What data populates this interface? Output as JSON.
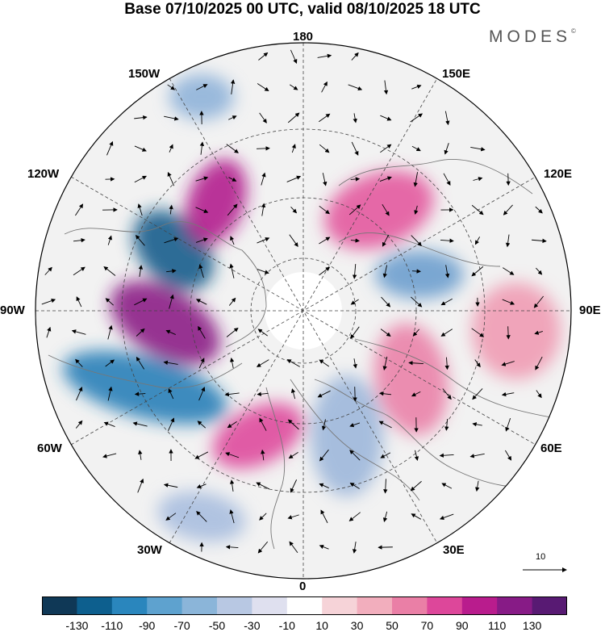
{
  "header": {
    "title": "Base 07/10/2025 00 UTC, valid 08/10/2025 18 UTC",
    "brand": "MODES",
    "brand_mark": "©"
  },
  "map": {
    "projection": "north-polar-stereographic",
    "longitude_labels": {
      "lon_180": "180",
      "lon_150e": "150E",
      "lon_120e": "120E",
      "lon_90e": "90E",
      "lon_60e": "60E",
      "lon_30e": "30E",
      "lon_0": "0",
      "lon_30w": "30W",
      "lon_60w": "60W",
      "lon_90w": "90W",
      "lon_120w": "120W",
      "lon_150w": "150W"
    },
    "vector_reference": {
      "label": "10"
    }
  },
  "colorbar": {
    "colors": [
      "#0f3856",
      "#0d5f8e",
      "#2a86bd",
      "#5ea2cf",
      "#8bb5d9",
      "#b8c8e3",
      "#dfe0ef",
      "#ffffff",
      "#f6d3d8",
      "#f2aebd",
      "#ea7fa6",
      "#dd479a",
      "#b91c8d",
      "#871b86",
      "#581a73"
    ],
    "ticks": [
      "-130",
      "-110",
      "-90",
      "-70",
      "-50",
      "-30",
      "-10",
      "10",
      "30",
      "50",
      "70",
      "90",
      "110",
      "130"
    ]
  },
  "anomaly_centers": [
    {
      "name": "blob-neg-n-america-west",
      "color": "#1b5d8c"
    },
    {
      "name": "blob-pos-canada",
      "color": "#8c1f86"
    },
    {
      "name": "blob-pos-alaska",
      "color": "#b31d8e"
    },
    {
      "name": "blob-neg-n-america-south",
      "color": "#2a7fb8"
    },
    {
      "name": "blob-neg-bering",
      "color": "#8fb3d9"
    },
    {
      "name": "blob-pos-siberia-east",
      "color": "#e35a9e"
    },
    {
      "name": "blob-neg-siberia-central",
      "color": "#6d9fce"
    },
    {
      "name": "blob-pos-central-asia",
      "color": "#ef9bb4"
    },
    {
      "name": "blob-pos-ural",
      "color": "#ea82a8"
    },
    {
      "name": "blob-neg-scandinavia",
      "color": "#9db7da"
    },
    {
      "name": "blob-pos-atlantic",
      "color": "#de4b9c"
    },
    {
      "name": "blob-neg-atlantic-south",
      "color": "#a9bedf"
    }
  ]
}
